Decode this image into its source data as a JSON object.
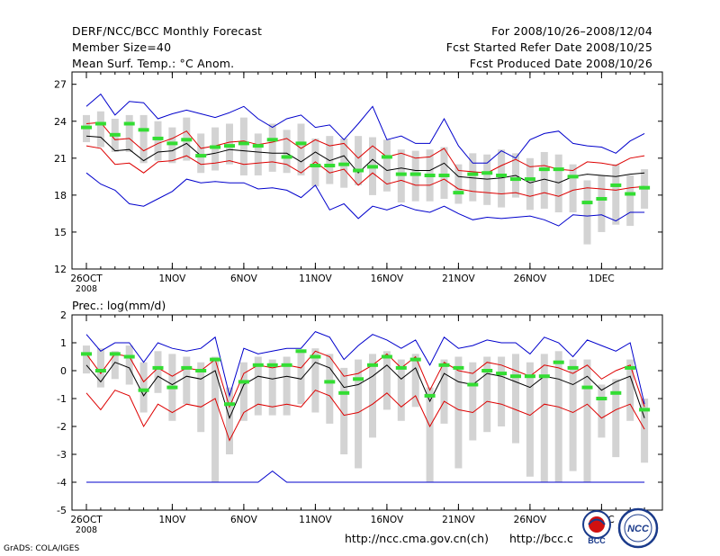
{
  "header": {
    "title_line1": "DERF/NCC/BCC Monthly Forecast",
    "title_line2": "Member Size=40",
    "title_line3": "Mean Surf. Temp.: °C Anom.",
    "period_line1": "For 2008/10/26–2008/12/04",
    "period_line2": "Fcst Started Refer Date 2008/10/25",
    "period_line3": "Fcst Produced Date 2008/10/26"
  },
  "footer": {
    "grads": "GrADS: COLA/IGES",
    "url1": "http://ncc.cma.gov.cn(ch)",
    "url2": "http://bcc.c",
    "logo1_text": "BCC",
    "logo2_text": "NCC"
  },
  "colors": {
    "box": "#d3d3d3",
    "green": "#33dd33",
    "red": "#dd0000",
    "blue": "#0000cc",
    "black": "#000000"
  },
  "chart_data": [
    {
      "type": "line",
      "title": "Mean Surf. Temp.: °C Anom.",
      "ylim": [
        12,
        28
      ],
      "yticks": [
        12,
        15,
        18,
        21,
        24,
        27
      ],
      "xtick_labels": [
        "26OCT",
        "1NOV",
        "6NOV",
        "11NOV",
        "16NOV",
        "21NOV",
        "26NOV",
        "1DEC"
      ],
      "xtick_sublabel": "2008",
      "days": 40,
      "series": [
        {
          "name": "max",
          "values": [
            25.2,
            26.2,
            24.5,
            25.6,
            25.5,
            24.2,
            24.6,
            24.9,
            24.6,
            24.3,
            24.7,
            25.2,
            24.2,
            23.5,
            24.2,
            24.5,
            23.5,
            23.7,
            22.5,
            23.8,
            25.2,
            22.5,
            22.8,
            22.2,
            22.2,
            24.2,
            22.0,
            20.6,
            20.6,
            21.6,
            21.0,
            22.5,
            23.0,
            23.2,
            22.2,
            22.0,
            21.9,
            21.4,
            22.4,
            23.0
          ]
        },
        {
          "name": "upper",
          "values": [
            23.8,
            23.9,
            22.5,
            22.6,
            21.6,
            22.2,
            22.6,
            23.2,
            21.8,
            22.0,
            22.3,
            22.4,
            22.1,
            22.3,
            22.6,
            21.8,
            22.5,
            22.0,
            22.2,
            21.0,
            22.0,
            21.1,
            21.4,
            21.0,
            21.1,
            21.8,
            20.0,
            19.9,
            19.8,
            20.4,
            20.9,
            20.3,
            20.4,
            20.1,
            20.0,
            20.7,
            20.6,
            20.4,
            21.0,
            21.2
          ]
        },
        {
          "name": "mean",
          "values": [
            22.8,
            22.7,
            21.6,
            21.7,
            20.8,
            21.5,
            21.6,
            22.2,
            21.2,
            21.4,
            21.7,
            21.6,
            21.5,
            21.4,
            21.4,
            20.7,
            21.5,
            20.8,
            21.2,
            19.8,
            20.9,
            20.0,
            20.2,
            20.0,
            20.0,
            20.6,
            19.5,
            19.4,
            19.3,
            19.4,
            19.6,
            19.0,
            19.3,
            19.0,
            19.5,
            19.7,
            19.6,
            19.5,
            19.7,
            19.8
          ]
        },
        {
          "name": "lower",
          "values": [
            22.0,
            21.8,
            20.5,
            20.6,
            19.8,
            20.7,
            20.8,
            21.2,
            20.5,
            20.6,
            20.8,
            20.5,
            20.6,
            20.7,
            20.5,
            19.8,
            20.7,
            19.8,
            20.1,
            18.8,
            19.8,
            18.9,
            19.2,
            18.8,
            18.8,
            19.3,
            18.5,
            18.3,
            18.2,
            18.1,
            18.2,
            17.9,
            18.2,
            17.9,
            18.4,
            18.6,
            18.5,
            18.4,
            18.6,
            18.7
          ]
        },
        {
          "name": "min",
          "values": [
            19.8,
            18.9,
            18.4,
            17.3,
            17.1,
            17.7,
            18.3,
            19.3,
            19.0,
            19.1,
            19.0,
            19.0,
            18.5,
            18.6,
            18.4,
            17.8,
            18.8,
            16.8,
            17.3,
            16.1,
            17.1,
            16.8,
            17.2,
            16.8,
            16.6,
            17.1,
            16.5,
            16.0,
            16.2,
            16.1,
            16.2,
            16.3,
            16.0,
            15.5,
            16.4,
            16.3,
            16.4,
            15.9,
            16.6,
            16.6
          ]
        },
        {
          "name": "ensemble_mean",
          "values": [
            23.5,
            23.8,
            22.9,
            23.8,
            23.3,
            22.6,
            22.2,
            22.5,
            21.2,
            21.9,
            22.0,
            22.2,
            22.0,
            22.5,
            21.1,
            22.2,
            20.4,
            20.4,
            20.5,
            20.0,
            20.3,
            21.1,
            19.7,
            19.7,
            19.6,
            19.6,
            18.2,
            19.7,
            19.8,
            19.6,
            19.3,
            19.3,
            20.1,
            20.1,
            19.5,
            17.4,
            17.7,
            18.8,
            18.1,
            18.6
          ]
        },
        {
          "name": "box_top",
          "values": [
            24.5,
            24.8,
            24.2,
            24.5,
            24.5,
            24.0,
            23.5,
            24.3,
            23.0,
            23.5,
            23.8,
            24.3,
            23.0,
            23.8,
            23.3,
            23.8,
            22.6,
            22.8,
            22.6,
            22.8,
            22.7,
            22.5,
            21.7,
            21.6,
            21.7,
            21.9,
            20.5,
            21.4,
            21.3,
            21.7,
            21.4,
            21.0,
            21.5,
            21.3,
            20.5,
            19.2,
            19.6,
            20.5,
            19.6,
            20.1
          ]
        },
        {
          "name": "box_bottom",
          "values": [
            22.3,
            21.9,
            21.5,
            21.5,
            20.6,
            20.8,
            20.6,
            20.8,
            19.8,
            20.0,
            20.5,
            19.6,
            19.6,
            19.9,
            19.8,
            19.6,
            18.7,
            18.9,
            18.6,
            18.8,
            18.0,
            18.3,
            17.4,
            17.5,
            17.5,
            17.7,
            17.3,
            17.5,
            17.2,
            17.0,
            17.8,
            16.8,
            16.9,
            16.6,
            16.6,
            14.0,
            15.0,
            15.6,
            15.5,
            16.9
          ]
        }
      ]
    },
    {
      "type": "line",
      "title": "Prec.: log(mm/d)",
      "ylim": [
        -5,
        2
      ],
      "yticks": [
        -5,
        -4,
        -3,
        -2,
        -1,
        0,
        1,
        2
      ],
      "xtick_labels": [
        "26OCT",
        "1NOV",
        "6NOV",
        "11NOV",
        "16NOV",
        "21NOV",
        "26NOV",
        "1DEC"
      ],
      "xtick_sublabel": "2008",
      "days": 40,
      "series": [
        {
          "name": "max",
          "values": [
            1.3,
            0.7,
            1.0,
            1.0,
            0.3,
            1.0,
            0.8,
            0.7,
            0.8,
            1.2,
            -0.9,
            0.8,
            0.6,
            0.7,
            0.8,
            0.8,
            1.4,
            1.2,
            0.4,
            0.9,
            1.3,
            1.1,
            0.8,
            1.1,
            0.2,
            1.2,
            0.8,
            0.9,
            1.1,
            1.0,
            1.0,
            0.6,
            1.2,
            1.0,
            0.5,
            1.1,
            0.9,
            0.7,
            1.0,
            -1.2
          ]
        },
        {
          "name": "upper",
          "values": [
            0.6,
            -0.1,
            0.6,
            0.5,
            -0.4,
            0.1,
            -0.2,
            0.1,
            0.0,
            0.4,
            -1.3,
            -0.1,
            0.2,
            0.1,
            0.2,
            0.1,
            0.7,
            0.5,
            -0.2,
            -0.1,
            0.2,
            0.6,
            0.1,
            0.5,
            -0.7,
            0.3,
            0.0,
            -0.1,
            0.3,
            0.2,
            0.0,
            -0.2,
            0.2,
            0.1,
            -0.1,
            0.2,
            -0.3,
            0.0,
            0.2,
            -1.3
          ]
        },
        {
          "name": "mean",
          "values": [
            0.2,
            -0.4,
            0.3,
            0.1,
            -0.9,
            -0.2,
            -0.5,
            -0.2,
            -0.3,
            0.0,
            -1.7,
            -0.5,
            -0.2,
            -0.3,
            -0.2,
            -0.3,
            0.3,
            0.1,
            -0.6,
            -0.5,
            -0.2,
            0.2,
            -0.3,
            0.1,
            -1.1,
            -0.1,
            -0.4,
            -0.5,
            -0.1,
            -0.2,
            -0.4,
            -0.6,
            -0.2,
            -0.3,
            -0.5,
            -0.2,
            -0.7,
            -0.4,
            -0.2,
            -1.7
          ]
        },
        {
          "name": "lower",
          "values": [
            -0.8,
            -1.4,
            -0.7,
            -0.9,
            -2.0,
            -1.2,
            -1.5,
            -1.2,
            -1.3,
            -1.0,
            -2.5,
            -1.5,
            -1.2,
            -1.3,
            -1.2,
            -1.3,
            -0.7,
            -0.9,
            -1.6,
            -1.5,
            -1.2,
            -0.8,
            -1.3,
            -0.9,
            -2.0,
            -1.1,
            -1.4,
            -1.5,
            -1.1,
            -1.2,
            -1.4,
            -1.6,
            -1.2,
            -1.3,
            -1.5,
            -1.2,
            -1.7,
            -1.4,
            -1.2,
            -2.1
          ]
        },
        {
          "name": "min",
          "values": [
            -4,
            -4,
            -4,
            -4,
            -4,
            -4,
            -4,
            -4,
            -4,
            -4,
            -4,
            -4,
            -4,
            -3.6,
            -4,
            -4,
            -4,
            -4,
            -4,
            -4,
            -4,
            -4,
            -4,
            -4,
            -4,
            -4,
            -4,
            -4,
            -4,
            -4,
            -4,
            -4,
            -4,
            -4,
            -4,
            -4,
            -4,
            -4,
            -4,
            -4
          ]
        },
        {
          "name": "ensemble_mean",
          "values": [
            0.6,
            0.0,
            0.6,
            0.5,
            -0.7,
            0.1,
            -0.6,
            0.1,
            0.0,
            0.4,
            -1.2,
            -0.4,
            0.2,
            0.2,
            0.2,
            0.7,
            0.5,
            -0.4,
            -0.8,
            -0.3,
            0.2,
            0.5,
            0.1,
            0.4,
            -0.9,
            0.2,
            0.1,
            -0.5,
            0.0,
            -0.1,
            -0.2,
            -0.2,
            -0.2,
            0.3,
            0.1,
            -0.6,
            -1.0,
            -0.8,
            0.1,
            -1.4
          ]
        },
        {
          "name": "box_top",
          "values": [
            0.9,
            0.8,
            0.7,
            0.9,
            0.3,
            0.7,
            0.6,
            0.5,
            0.3,
            0.5,
            -0.6,
            0.3,
            0.5,
            0.4,
            0.5,
            0.7,
            0.8,
            0.6,
            0.1,
            0.4,
            0.6,
            0.7,
            0.4,
            0.6,
            -0.6,
            0.4,
            0.5,
            0.3,
            0.5,
            0.5,
            0.6,
            0.3,
            0.6,
            0.7,
            0.4,
            0.4,
            -0.5,
            -0.3,
            0.4,
            -1.0
          ]
        },
        {
          "name": "box_bottom",
          "values": [
            -0.1,
            -0.6,
            -0.3,
            -0.5,
            -1.5,
            -0.8,
            -1.8,
            -1.2,
            -2.2,
            -4.0,
            -3.0,
            -1.8,
            -1.6,
            -1.6,
            -1.6,
            -1.2,
            -1.5,
            -1.9,
            -3.0,
            -3.5,
            -2.4,
            -1.4,
            -1.8,
            -1.3,
            -4.0,
            -1.9,
            -3.5,
            -2.5,
            -2.2,
            -2.0,
            -2.6,
            -3.8,
            -4.0,
            -4.0,
            -3.6,
            -4.0,
            -2.4,
            -3.1,
            -1.8,
            -3.3
          ]
        }
      ]
    }
  ]
}
